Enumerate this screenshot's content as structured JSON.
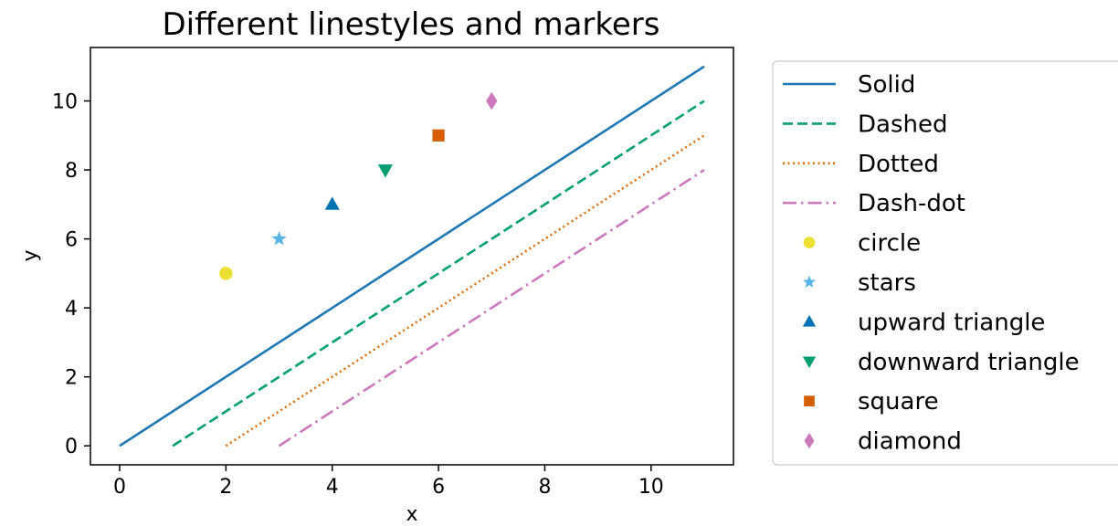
{
  "chart_data": {
    "type": "line",
    "title": "Different linestyles and markers",
    "xlabel": "x",
    "ylabel": "y",
    "xlim": [
      -0.55,
      11.55
    ],
    "ylim": [
      -0.55,
      11.55
    ],
    "xticks": [
      0,
      2,
      4,
      6,
      8,
      10
    ],
    "yticks": [
      0,
      2,
      4,
      6,
      8,
      10
    ],
    "grid": false,
    "legend_position": "outside-right",
    "series": [
      {
        "name": "Solid",
        "kind": "line",
        "dash": "solid",
        "color": "#1f77b4",
        "x": [
          0,
          11
        ],
        "y": [
          0,
          11
        ]
      },
      {
        "name": "Dashed",
        "kind": "line",
        "dash": "dashed",
        "color": "#029e73",
        "x": [
          1,
          11
        ],
        "y": [
          0,
          10
        ]
      },
      {
        "name": "Dotted",
        "kind": "line",
        "dash": "dotted",
        "color": "#de6d0c",
        "x": [
          2,
          11
        ],
        "y": [
          0,
          9
        ]
      },
      {
        "name": "Dash-dot",
        "kind": "line",
        "dash": "dashdot",
        "color": "#cc78bc",
        "x": [
          3,
          11
        ],
        "y": [
          0,
          8
        ]
      },
      {
        "name": "circle",
        "kind": "marker",
        "marker": "circle",
        "color": "#ece133",
        "x": [
          2
        ],
        "y": [
          5
        ]
      },
      {
        "name": "stars",
        "kind": "marker",
        "marker": "star",
        "color": "#56b4e9",
        "x": [
          3
        ],
        "y": [
          6
        ]
      },
      {
        "name": "upward triangle",
        "kind": "marker",
        "marker": "triangle-up",
        "color": "#0173b2",
        "x": [
          4
        ],
        "y": [
          7
        ]
      },
      {
        "name": "downward triangle",
        "kind": "marker",
        "marker": "triangle-down",
        "color": "#029e73",
        "x": [
          5
        ],
        "y": [
          8
        ]
      },
      {
        "name": "square",
        "kind": "marker",
        "marker": "square",
        "color": "#d55e00",
        "x": [
          6
        ],
        "y": [
          9
        ]
      },
      {
        "name": "diamond",
        "kind": "marker",
        "marker": "diamond",
        "color": "#cc78bc",
        "x": [
          7
        ],
        "y": [
          10
        ]
      }
    ]
  }
}
